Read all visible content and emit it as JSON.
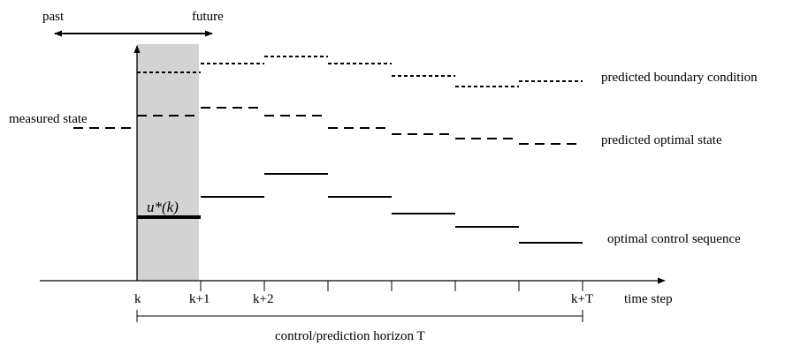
{
  "direction": {
    "past_label": "past",
    "future_label": "future"
  },
  "labels": {
    "measured_state": "measured state",
    "predicted_boundary": "predicted boundary condition",
    "predicted_optimal_state": "predicted optimal state",
    "optimal_control": "optimal control sequence",
    "time_axis": "time step",
    "horizon": "control/prediction horizon T",
    "current_control": "u*(k)"
  },
  "ticks": [
    "k",
    "k+1",
    "k+2",
    "k+T"
  ],
  "colors": {
    "shaded_interval": "#d3d3d3",
    "ink": "#000000"
  }
}
